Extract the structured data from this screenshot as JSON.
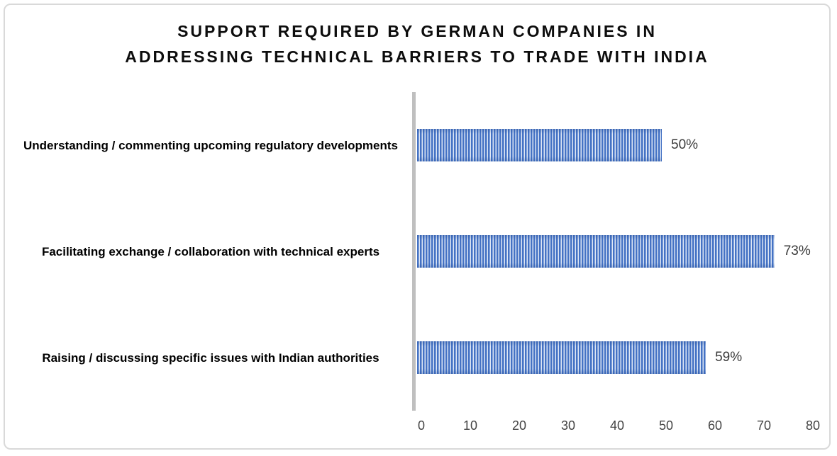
{
  "title": {
    "line1": "SUPPORT REQUIRED BY GERMAN COMPANIES IN",
    "line2": "ADDRESSING TECHNICAL BARRIERS TO TRADE WITH INDIA"
  },
  "chart_data": {
    "type": "bar",
    "orientation": "horizontal",
    "title": "SUPPORT REQUIRED BY GERMAN COMPANIES IN ADDRESSING TECHNICAL BARRIERS TO TRADE WITH INDIA",
    "categories": [
      "Understanding / commenting upcoming regulatory developments",
      "Facilitating exchange / collaboration with technical experts",
      "Raising / discussing specific issues with Indian authorities"
    ],
    "values": [
      50,
      73,
      59
    ],
    "data_labels": [
      "50%",
      "73%",
      "59%"
    ],
    "x_ticks": [
      0,
      10,
      20,
      30,
      40,
      50,
      60,
      70,
      80
    ],
    "xlim": [
      0,
      80
    ],
    "xlabel": "",
    "ylabel": "",
    "grid": false,
    "legend": false,
    "bar_fill_pattern": "vertical-stripes",
    "colors": {
      "bar": "#4472c4",
      "bar_stripe": "#dfe8f6",
      "bar_edge_shade": "rgba(32,74,150,0.30)",
      "axis_line": "#bfbfbf",
      "tick_text": "#444444",
      "data_label_text": "#3a3a3a",
      "category_text": "#000000",
      "title_text": "#0d0d0d",
      "frame_border": "#d9d9d9",
      "background": "#ffffff"
    }
  }
}
